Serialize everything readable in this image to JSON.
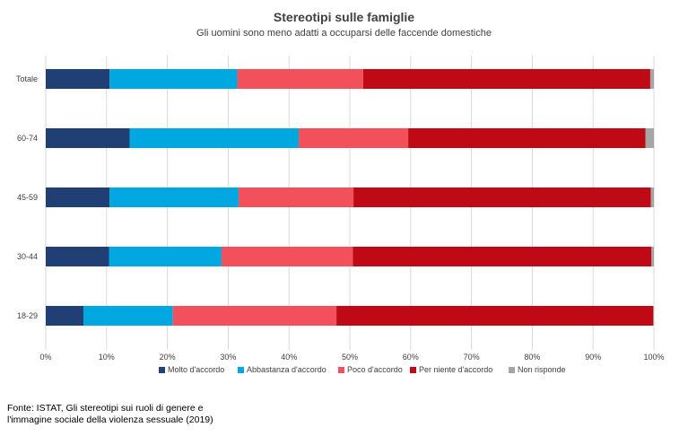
{
  "chart_data": {
    "type": "bar",
    "orientation": "horizontal",
    "stacked": true,
    "title": "Stereotipi sulle famiglie",
    "subtitle": "Gli uomini sono meno adatti a occuparsi delle faccende domestiche",
    "categories": [
      "Totale",
      "60-74",
      "45-59",
      "30-44",
      "18-29"
    ],
    "series": [
      {
        "name": "Molto d'accordo",
        "color": "#203f74",
        "values": [
          10.5,
          13.8,
          10.5,
          10.4,
          6.2
        ]
      },
      {
        "name": "Abbastanza d'accordo",
        "color": "#00a7e1",
        "values": [
          21.0,
          27.8,
          21.2,
          18.5,
          14.7
        ]
      },
      {
        "name": "Poco d'accordo",
        "color": "#f2505a",
        "values": [
          20.7,
          18.0,
          18.9,
          21.6,
          26.9
        ]
      },
      {
        "name": "Per niente d'accordo",
        "color": "#bf0914",
        "values": [
          47.2,
          39.0,
          48.9,
          49.1,
          52.1
        ]
      },
      {
        "name": "Non risponde",
        "color": "#a6a6a6",
        "values": [
          0.6,
          1.4,
          0.5,
          0.4,
          0.1
        ]
      }
    ],
    "xlim": [
      0,
      100
    ],
    "x_ticks": [
      "0%",
      "10%",
      "20%",
      "30%",
      "40%",
      "50%",
      "60%",
      "70%",
      "80%",
      "90%",
      "100%"
    ],
    "grid": true,
    "legend_position": "bottom"
  },
  "source_note": "Fonte: ISTAT, Gli stereotipi sui ruoli di genere e l'immagine sociale della violenza sessuale (2019)"
}
